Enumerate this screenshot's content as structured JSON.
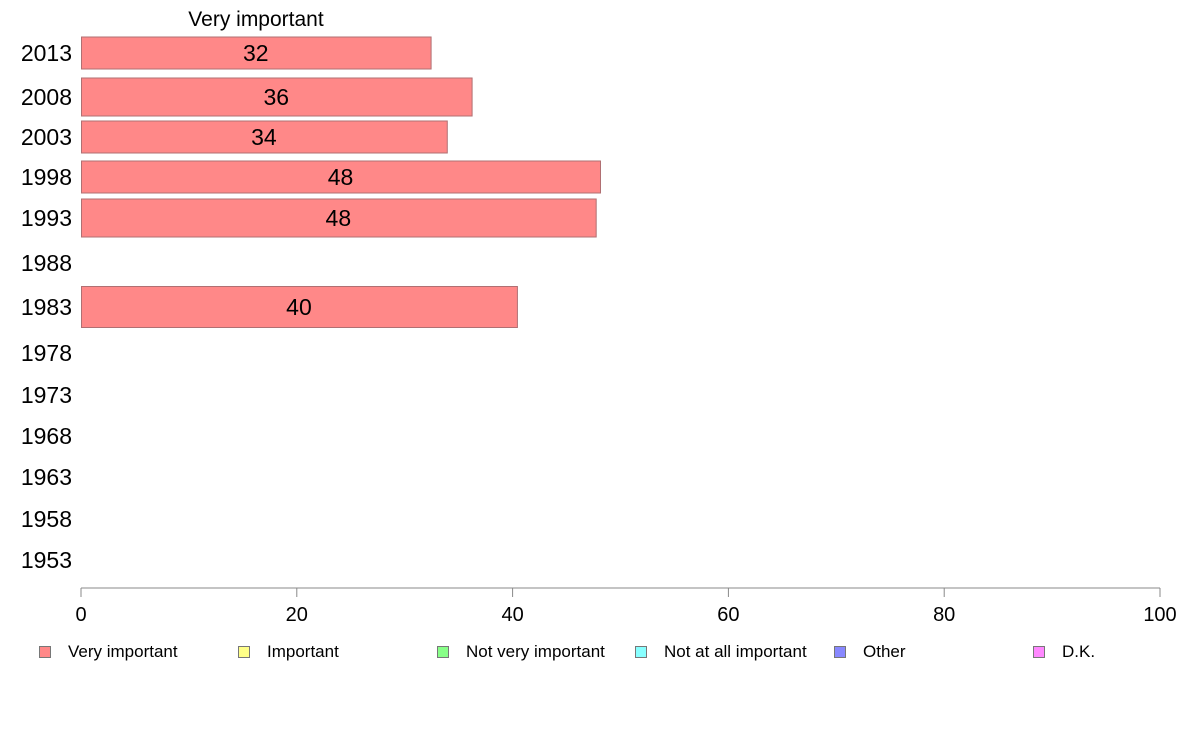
{
  "chart_data": {
    "type": "bar",
    "orientation": "horizontal",
    "title": "Very important",
    "categories": [
      "2013",
      "2008",
      "2003",
      "1998",
      "1993",
      "1988",
      "1983",
      "1978",
      "1973",
      "1968",
      "1963",
      "1958",
      "1953"
    ],
    "series": [
      {
        "name": "Very important",
        "values": [
          32.4,
          36.2,
          33.9,
          48.1,
          47.7,
          null,
          40.4,
          null,
          null,
          null,
          null,
          null,
          null
        ],
        "labels": [
          "32",
          "36",
          "34",
          "48",
          "48",
          "",
          "40",
          "",
          "",
          "",
          "",
          "",
          ""
        ],
        "color": "#ff8888"
      }
    ],
    "xlim": [
      0,
      100
    ],
    "xticks": [
      0,
      20,
      40,
      60,
      80,
      100
    ],
    "grid": false,
    "legend_position": "bottom",
    "legend": [
      {
        "label": "Very important",
        "color": "#ff8888"
      },
      {
        "label": "Important",
        "color": "#ffff88"
      },
      {
        "label": "Not very important",
        "color": "#88ff88"
      },
      {
        "label": "Not at all important",
        "color": "#88ffff"
      },
      {
        "label": "Other",
        "color": "#8888ff"
      },
      {
        "label": "D.K.",
        "color": "#ff88ff"
      }
    ]
  }
}
